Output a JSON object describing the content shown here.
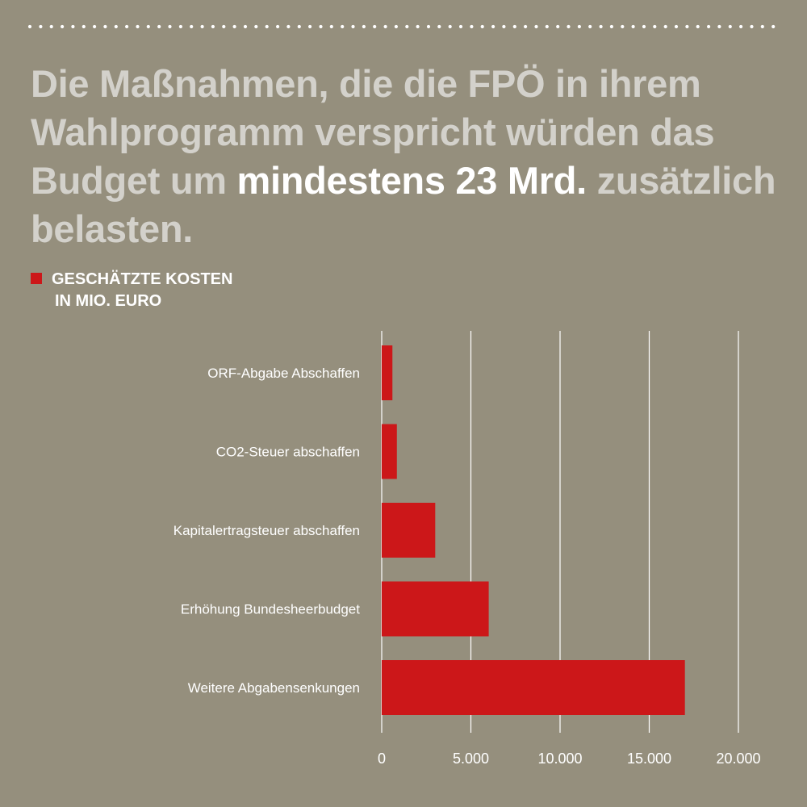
{
  "headline": {
    "before": "Die Maßnahmen, die die FPÖ in ihrem Wahlprogramm verspricht würden das Budget um ",
    "highlight": "mindestens 23 Mrd.",
    "after": " zusätzlich belasten."
  },
  "legend": {
    "line1": "GESCHÄTZTE KOSTEN",
    "line2": "IN MIO. EURO",
    "color": "#cc1719"
  },
  "colors": {
    "background": "#958f7d",
    "bar": "#cc1719",
    "text": "#ffffff",
    "headline": "#d3d1cb"
  },
  "chart_data": {
    "type": "bar",
    "orientation": "horizontal",
    "title": "",
    "xlabel": "",
    "ylabel": "",
    "categories": [
      "ORF-Abgabe Abschaffen",
      "CO2-Steuer abschaffen",
      "Kapitalertragsteuer abschaffen",
      "Erhöhung Bundesheerbudget",
      "Weitere Abgabensenkungen"
    ],
    "series": [
      {
        "name": "GESCHÄTZTE KOSTEN IN MIO. EURO",
        "values": [
          600,
          850,
          3000,
          6000,
          17000
        ]
      }
    ],
    "xlim": [
      0,
      20000
    ],
    "xticks": [
      0,
      5000,
      10000,
      15000,
      20000
    ],
    "xtick_labels": [
      "0",
      "5.000",
      "10.000",
      "15.000",
      "20.000"
    ],
    "grid": true,
    "legend_position": "top-left"
  }
}
